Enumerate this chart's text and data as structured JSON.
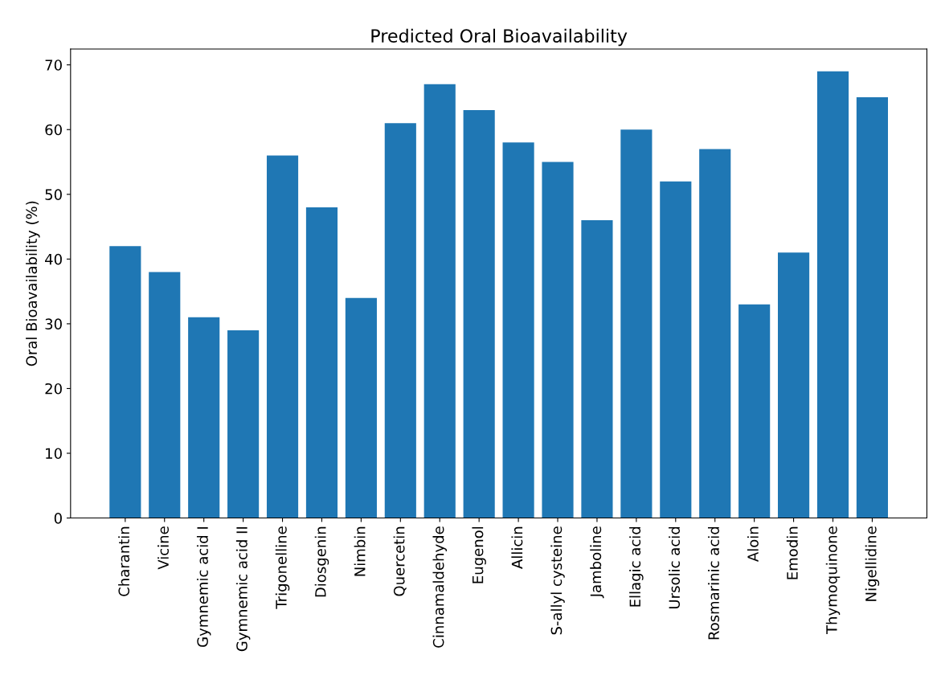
{
  "chart_data": {
    "type": "bar",
    "title": "Predicted Oral Bioavailability",
    "ylabel": "Oral Bioavailability (%)",
    "categories": [
      "Charantin",
      "Vicine",
      "Gymnemic acid I",
      "Gymnemic acid II",
      "Trigonelline",
      "Diosgenin",
      "Nimbin",
      "Quercetin",
      "Cinnamaldehyde",
      "Eugenol",
      "Allicin",
      "S-allyl cysteine",
      "Jamboline",
      "Ellagic acid",
      "Ursolic acid",
      "Rosmarinic acid",
      "Aloin",
      "Emodin",
      "Thymoquinone",
      "Nigellidine"
    ],
    "values": [
      42,
      38,
      31,
      29,
      56,
      48,
      34,
      61,
      67,
      63,
      58,
      55,
      46,
      60,
      52,
      57,
      33,
      41,
      69,
      65
    ],
    "color": "#1f77b4",
    "ylim": [
      0,
      72.45
    ],
    "yticks": [
      0,
      10,
      20,
      30,
      40,
      50,
      60,
      70
    ],
    "grid": false
  }
}
